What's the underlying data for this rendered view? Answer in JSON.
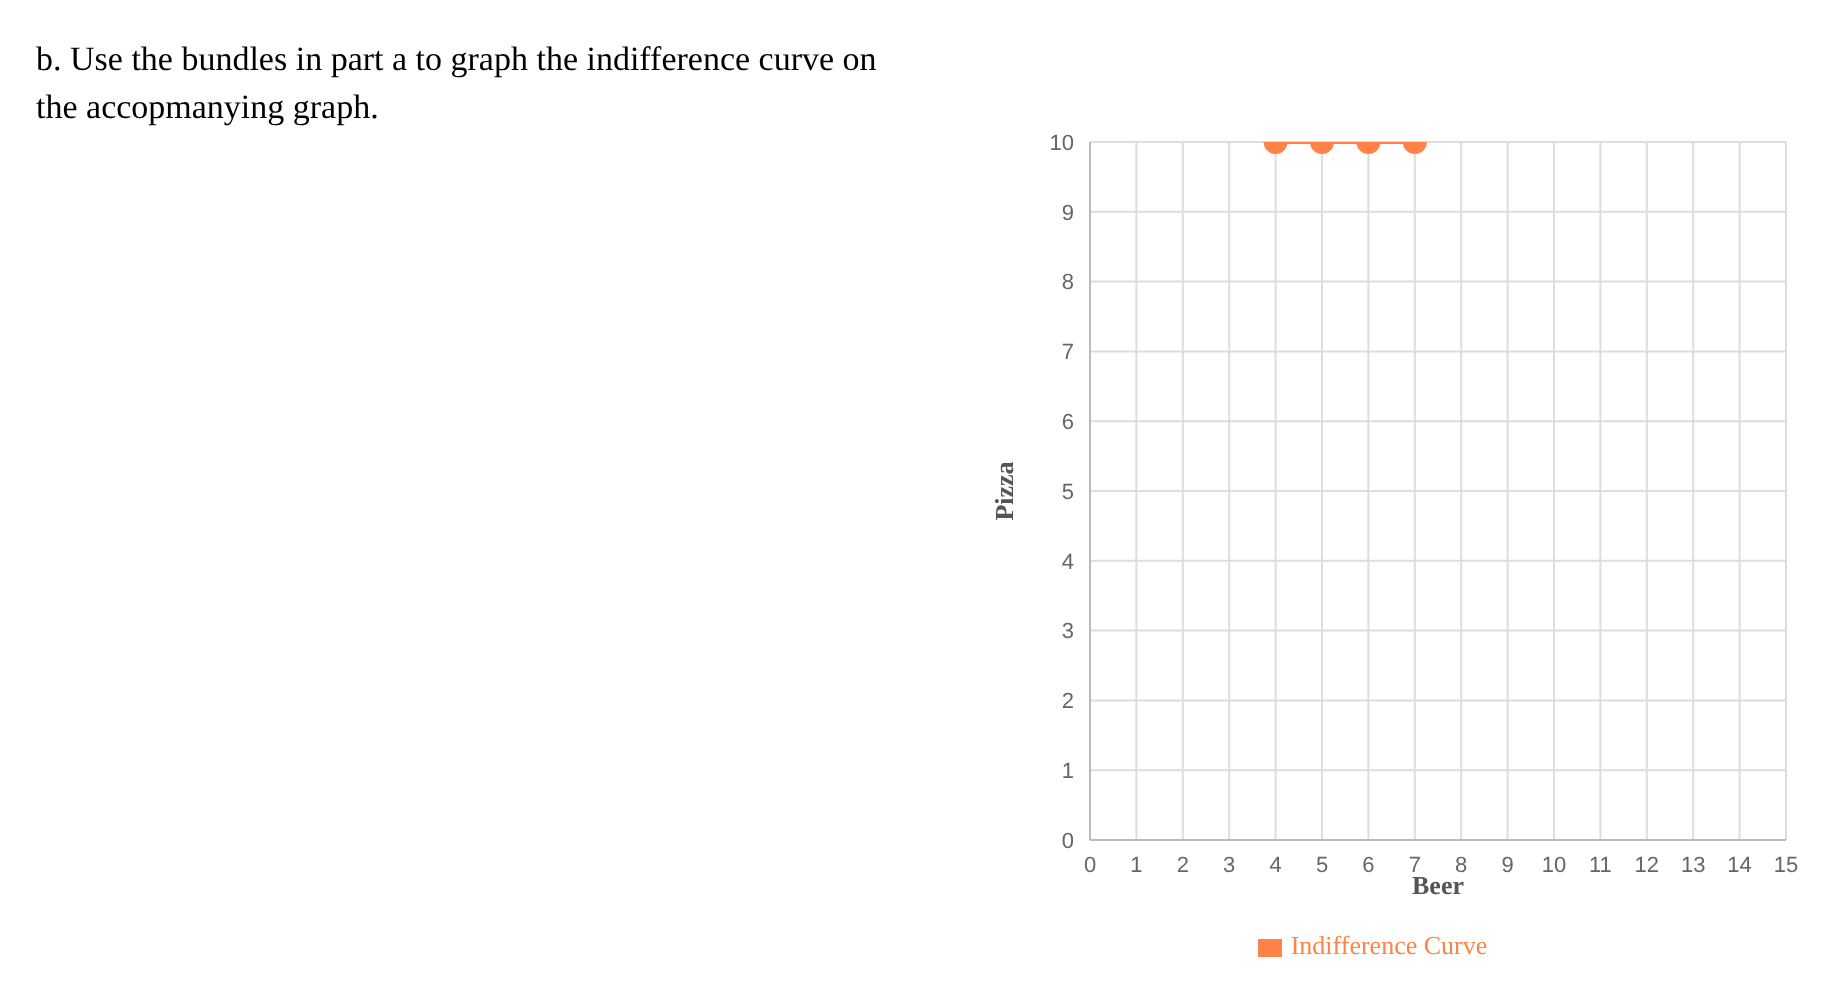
{
  "chart_data": {
    "type": "line",
    "title": "b. Use the bundles in part a to graph the indifference curve on the accopmanying graph.",
    "xlabel": "Beer",
    "ylabel": "Pizza",
    "x": [
      4,
      5,
      6,
      7
    ],
    "series": [
      {
        "name": "Indifference Curve",
        "color": "#ff8347",
        "values": [
          10,
          10,
          10,
          10
        ]
      }
    ],
    "xlim": [
      0,
      15
    ],
    "xticks": [
      0,
      1,
      2,
      3,
      4,
      5,
      6,
      7,
      8,
      9,
      10,
      11,
      12,
      13,
      14,
      15
    ],
    "ylim": [
      0,
      10
    ],
    "yticks": [
      0,
      1,
      2,
      3,
      4,
      5,
      6,
      7,
      8,
      9,
      10
    ],
    "grid": true,
    "legend": "bottom",
    "marker": "circle",
    "line_style": "solid"
  }
}
